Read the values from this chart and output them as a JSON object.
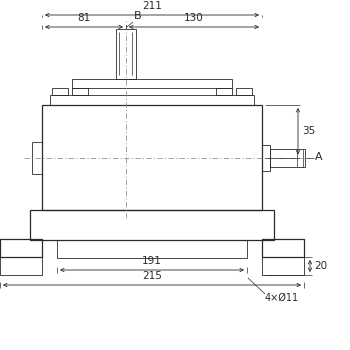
{
  "bg_color": "#ffffff",
  "line_color": "#2a2a2a",
  "dim_color": "#2a2a2a",
  "center_line_color": "#888888",
  "figsize": [
    3.5,
    3.5
  ],
  "dpi": 100,
  "dims": {
    "total_width_label": "211",
    "left_label": "81",
    "right_label": "130",
    "dim35_label": "35",
    "dim191_label": "191",
    "dim215_label": "215",
    "dim20_label": "20",
    "hole_label": "4×Ø11",
    "label_A": "A",
    "label_B": "B"
  }
}
